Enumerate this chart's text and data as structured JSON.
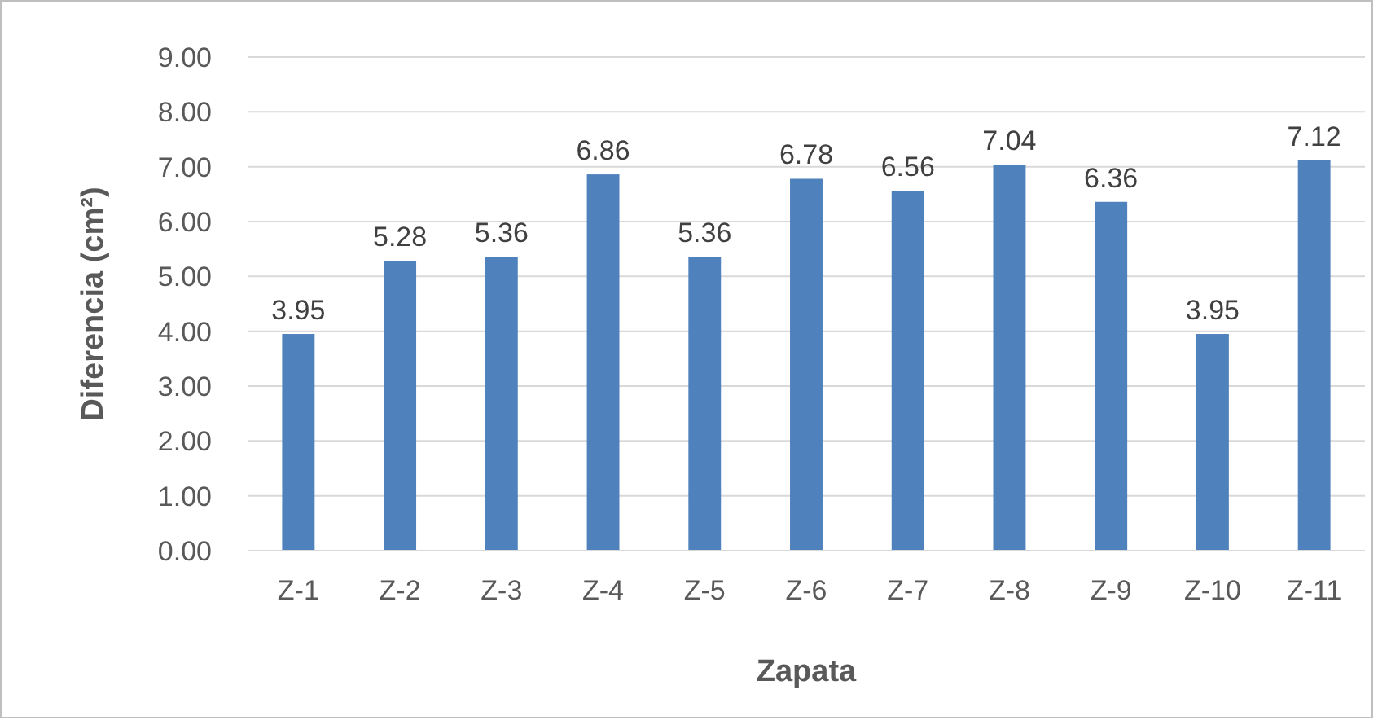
{
  "chart_data": {
    "type": "bar",
    "xlabel": "Zapata",
    "ylabel": "Diferencia  (cm²)",
    "categories": [
      "Z-1",
      "Z-2",
      "Z-3",
      "Z-4",
      "Z-5",
      "Z-6",
      "Z-7",
      "Z-8",
      "Z-9",
      "Z-10",
      "Z-11"
    ],
    "values": [
      3.95,
      5.28,
      5.36,
      6.86,
      5.36,
      6.78,
      6.56,
      7.04,
      6.36,
      3.95,
      7.12
    ],
    "color": "#4f81bd",
    "data_labels": true,
    "grid": "y",
    "ylim": [
      0,
      9
    ],
    "yticks": [
      {
        "value": 0,
        "label": "0.00"
      },
      {
        "value": 1,
        "label": "1.00"
      },
      {
        "value": 2,
        "label": "2.00"
      },
      {
        "value": 3,
        "label": "3.00"
      },
      {
        "value": 4,
        "label": "4.00"
      },
      {
        "value": 5,
        "label": "5.00"
      },
      {
        "value": 6,
        "label": "6.00"
      },
      {
        "value": 7,
        "label": "7.00"
      },
      {
        "value": 8,
        "label": "8.00"
      },
      {
        "value": 9,
        "label": "9.00"
      }
    ]
  }
}
